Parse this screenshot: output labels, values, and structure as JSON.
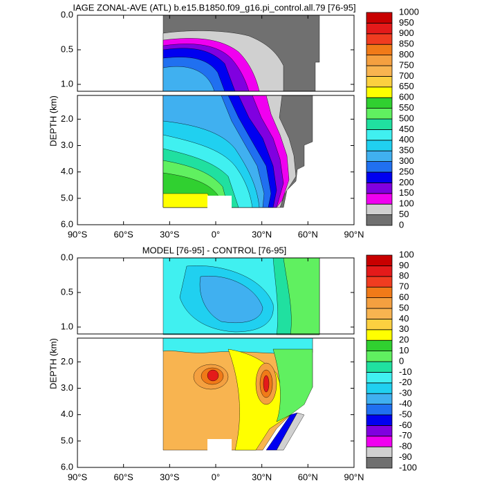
{
  "chart_data": [
    {
      "type": "contour",
      "title": "IAGE ZONAL-AVE (ATL) b.e15.B1850.f09_g16.pi_control.all.79 [76-95]",
      "ylabel": "DEPTH (km)",
      "xlim": [
        -90,
        90
      ],
      "xticks": [
        {
          "value": -90,
          "label": "90°S"
        },
        {
          "value": -60,
          "label": "60°S"
        },
        {
          "value": -30,
          "label": "30°S"
        },
        {
          "value": 0,
          "label": "0°"
        },
        {
          "value": 30,
          "label": "30°N"
        },
        {
          "value": 60,
          "label": "60°N"
        },
        {
          "value": 90,
          "label": "90°N"
        }
      ],
      "y_inverted": true,
      "panels": [
        {
          "ylim": [
            0,
            1.1
          ],
          "yticks": [
            {
              "value": 0,
              "label": "0.0"
            },
            0.5,
            {
              "value": 1,
              "label": "1.0"
            }
          ]
        },
        {
          "ylim": [
            1.1,
            6
          ],
          "yticks": [
            {
              "value": 2,
              "label": "2.0"
            },
            {
              "value": 3,
              "label": "3.0"
            },
            {
              "value": 4,
              "label": "4.0"
            },
            {
              "value": 5,
              "label": "5.0"
            },
            {
              "value": 6,
              "label": "6.0"
            }
          ]
        }
      ],
      "levels": [
        0,
        50,
        100,
        150,
        200,
        250,
        300,
        350,
        400,
        450,
        500,
        550,
        600,
        650,
        700,
        750,
        800,
        850,
        900,
        950,
        1000
      ],
      "colors": [
        "#707070",
        "#d0d0d0",
        "#f000f0",
        "#8000e0",
        "#0000f0",
        "#2070f0",
        "#40b0f0",
        "#20d0f0",
        "#40f0f0",
        "#20e0a0",
        "#60f060",
        "#30d030",
        "#ffff00",
        "#fcd040",
        "#f8b450",
        "#f4a040",
        "#f07a18",
        "#f03c20",
        "#e41a1a",
        "#c80000"
      ]
    },
    {
      "type": "contour",
      "title": "MODEL [76-95] - CONTROL [76-95]",
      "ylabel": "DEPTH (km)",
      "xlim": [
        -90,
        90
      ],
      "xticks": [
        {
          "value": -90,
          "label": "90°S"
        },
        {
          "value": -60,
          "label": "60°S"
        },
        {
          "value": -30,
          "label": "30°S"
        },
        {
          "value": 0,
          "label": "0°"
        },
        {
          "value": 30,
          "label": "30°N"
        },
        {
          "value": 60,
          "label": "60°N"
        },
        {
          "value": 90,
          "label": "90°N"
        }
      ],
      "y_inverted": true,
      "panels": [
        {
          "ylim": [
            0,
            1.1
          ],
          "yticks": [
            {
              "value": 0,
              "label": "0.0"
            },
            0.5,
            {
              "value": 1,
              "label": "1.0"
            }
          ]
        },
        {
          "ylim": [
            1.1,
            6
          ],
          "yticks": [
            {
              "value": 2,
              "label": "2.0"
            },
            {
              "value": 3,
              "label": "3.0"
            },
            {
              "value": 4,
              "label": "4.0"
            },
            {
              "value": 5,
              "label": "5.0"
            },
            {
              "value": 6,
              "label": "6.0"
            }
          ]
        }
      ],
      "levels": [
        -100,
        -90,
        -80,
        -70,
        -60,
        -50,
        -40,
        -30,
        -20,
        -10,
        0,
        10,
        20,
        30,
        40,
        50,
        60,
        70,
        80,
        90,
        100
      ],
      "colors": [
        "#707070",
        "#d0d0d0",
        "#f000f0",
        "#8000e0",
        "#0000f0",
        "#2070f0",
        "#40b0f0",
        "#20d0f0",
        "#40f0f0",
        "#20e0a0",
        "#60f060",
        "#30d030",
        "#ffff00",
        "#fcd040",
        "#f8b450",
        "#f4a040",
        "#f07a18",
        "#f03c20",
        "#e41a1a",
        "#c80000"
      ]
    }
  ]
}
